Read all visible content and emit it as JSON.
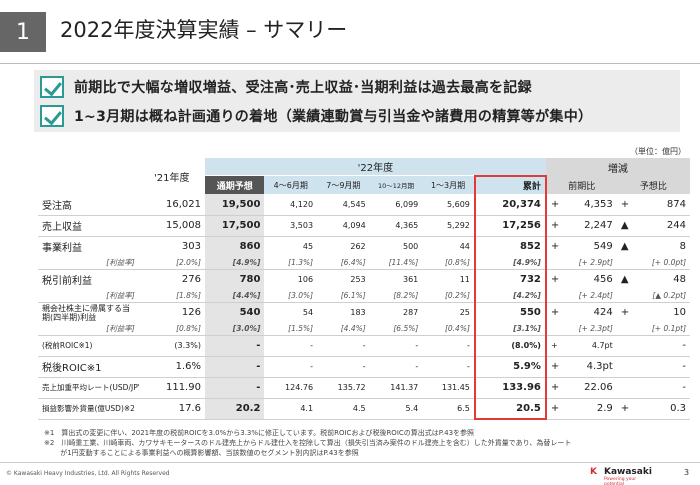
{
  "header": {
    "section_num": "1",
    "title": "2022年度決算実績 – サマリー"
  },
  "summary": [
    "前期比で大幅な増収増益、受注高･売上収益･当期利益は過去最高を記録",
    "1~3月期は概ね計画通りの着地（業績連動賞与引当金や諸費用の精算等が集中）"
  ],
  "unit": "（単位：億円）",
  "table": {
    "head": {
      "fy21": "'21年度",
      "fy22": "'22年度",
      "change": "増減",
      "plan": "通期予想",
      "q1": "4～6月期",
      "q2": "7～9月期",
      "q3": "10～12月期",
      "q4": "1～3月期",
      "total": "累計",
      "yoy": "前期比",
      "vsplan": "予想比"
    },
    "rows": [
      {
        "label": "受注高",
        "fy21": "16,021",
        "plan": "19,500",
        "q1": "4,120",
        "q2": "4,545",
        "q3": "6,099",
        "q4": "5,609",
        "total": "20,374",
        "yoy_sign": "+",
        "yoy": "4,353",
        "vp_sign": "+",
        "vp": "874"
      },
      {
        "label": "売上収益",
        "fy21": "15,008",
        "plan": "17,500",
        "q1": "3,503",
        "q2": "4,094",
        "q3": "4,365",
        "q4": "5,292",
        "total": "17,256",
        "yoy_sign": "+",
        "yoy": "2,247",
        "vp_sign": "▲",
        "vp": "244"
      },
      {
        "label": "事業利益",
        "fy21": "303",
        "plan": "860",
        "q1": "45",
        "q2": "262",
        "q3": "500",
        "q4": "44",
        "total": "852",
        "yoy_sign": "+",
        "yoy": "549",
        "vp_sign": "▲",
        "vp": "8"
      },
      {
        "label": "[利益率]",
        "fy21": "[2.0%]",
        "plan": "[4.9%]",
        "q1": "[1.3%]",
        "q2": "[6.4%]",
        "q3": "[11.4%]",
        "q4": "[0.8%]",
        "total": "[4.9%]",
        "yoy": "[+ 2.9pt]",
        "vp": "[+ 0.0pt]"
      },
      {
        "label": "税引前利益",
        "fy21": "276",
        "plan": "780",
        "q1": "106",
        "q2": "253",
        "q3": "361",
        "q4": "11",
        "total": "732",
        "yoy_sign": "+",
        "yoy": "456",
        "vp_sign": "▲",
        "vp": "48"
      },
      {
        "label": "[利益率]",
        "fy21": "[1.8%]",
        "plan": "[4.4%]",
        "q1": "[3.0%]",
        "q2": "[6.1%]",
        "q3": "[8.2%]",
        "q4": "[0.2%]",
        "total": "[4.2%]",
        "yoy": "[+ 2.4pt]",
        "vp": "[▲ 0.2pt]"
      },
      {
        "label": "親会社株主に帰属する当期(四半期)利益",
        "fy21": "126",
        "plan": "540",
        "q1": "54",
        "q2": "183",
        "q3": "287",
        "q4": "25",
        "total": "550",
        "yoy_sign": "+",
        "yoy": "424",
        "vp_sign": "+",
        "vp": "10"
      },
      {
        "label": "[利益率]",
        "fy21": "[0.8%]",
        "plan": "[3.0%]",
        "q1": "[1.5%]",
        "q2": "[4.4%]",
        "q3": "[6.5%]",
        "q4": "[0.4%]",
        "total": "[3.1%]",
        "yoy": "[+ 2.3pt]",
        "vp": "[+ 0.1pt]"
      },
      {
        "label": "(税前ROIC※1)",
        "fy21": "(3.3%)",
        "plan": "-",
        "q1": "-",
        "q2": "-",
        "q3": "-",
        "q4": "-",
        "total": "(8.0%)",
        "yoy_sign": "+",
        "yoy": "4.7pt",
        "vp_sign": "",
        "vp": "-"
      },
      {
        "label": "税後ROIC※1",
        "fy21": "1.6%",
        "plan": "-",
        "q1": "-",
        "q2": "-",
        "q3": "-",
        "q4": "-",
        "total": "5.9%",
        "yoy_sign": "+",
        "yoy": "4.3pt",
        "vp_sign": "",
        "vp": "-"
      },
      {
        "label": "売上加重平均レート(USD/JPY)",
        "fy21": "111.90",
        "plan": "-",
        "q1": "124.76",
        "q2": "135.72",
        "q3": "141.37",
        "q4": "131.45",
        "total": "133.96",
        "yoy_sign": "+",
        "yoy": "22.06",
        "vp_sign": "",
        "vp": "-"
      },
      {
        "label": "損益影響外貨量(億USD)※2",
        "fy21": "17.6",
        "plan": "20.2",
        "q1": "4.1",
        "q2": "4.5",
        "q3": "5.4",
        "q4": "6.5",
        "total": "20.5",
        "yoy_sign": "+",
        "yoy": "2.9",
        "vp_sign": "+",
        "vp": "0.3"
      }
    ]
  },
  "notes": [
    "※1　算出式の変更に伴い、2021年度の税前ROICを3.0%から3.3%に修正しています。税前ROICおよび税後ROICの算出式はP.43を参照",
    "※2　川崎重工業、川崎車両、カワサキモータースのドル建売上からドル建仕入を控除して算出（損失引当済み案件のドル建売上を含む）した外貨量であり、為替レート",
    "　　 が1円変動することによる事業利益への概算影響額、当該数値のセグメント別内訳はP.43を参照"
  ],
  "footer": {
    "copyright": "© Kawasaki Heavy Industries, Ltd. All Rights Reserved",
    "logo_mark": "K",
    "logo_name": "Kawasaki",
    "logo_tag": "Powering your potential",
    "page": "3"
  },
  "colors": {
    "accent_teal": "#2a9a94",
    "highlight_red": "#e53935",
    "band_blue": "#cfe3ef"
  }
}
